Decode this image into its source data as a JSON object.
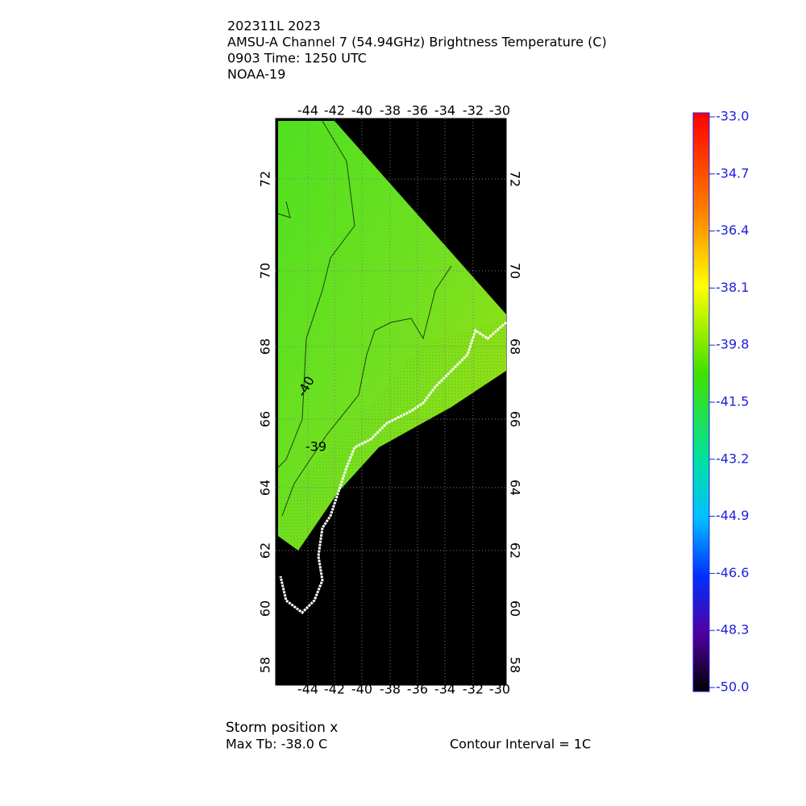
{
  "header": {
    "lines": [
      "202311L 2023",
      "AMSU-A Channel 7 (54.94GHz) Brightness Temperature (C)",
      "0903 Time: 1250 UTC",
      "NOAA-19"
    ]
  },
  "map": {
    "lon_ticks": [
      "-44",
      "-42",
      "-40",
      "-38",
      "-36",
      "-34",
      "-32",
      "-30"
    ],
    "lat_ticks": [
      "58",
      "60",
      "62",
      "64",
      "66",
      "68",
      "70",
      "72"
    ],
    "contour_labels": [
      "-40",
      "-39"
    ]
  },
  "colorbar": {
    "ticks": [
      "-33.0",
      "-34.7",
      "-36.4",
      "-38.1",
      "-39.8",
      "-41.5",
      "-43.2",
      "-44.9",
      "-46.6",
      "-48.3",
      "-50.0"
    ]
  },
  "footer": {
    "storm": "Storm position x",
    "max_tb": "Max Tb: -38.0    C",
    "contour_interval": "Contour Interval = 1C"
  }
}
